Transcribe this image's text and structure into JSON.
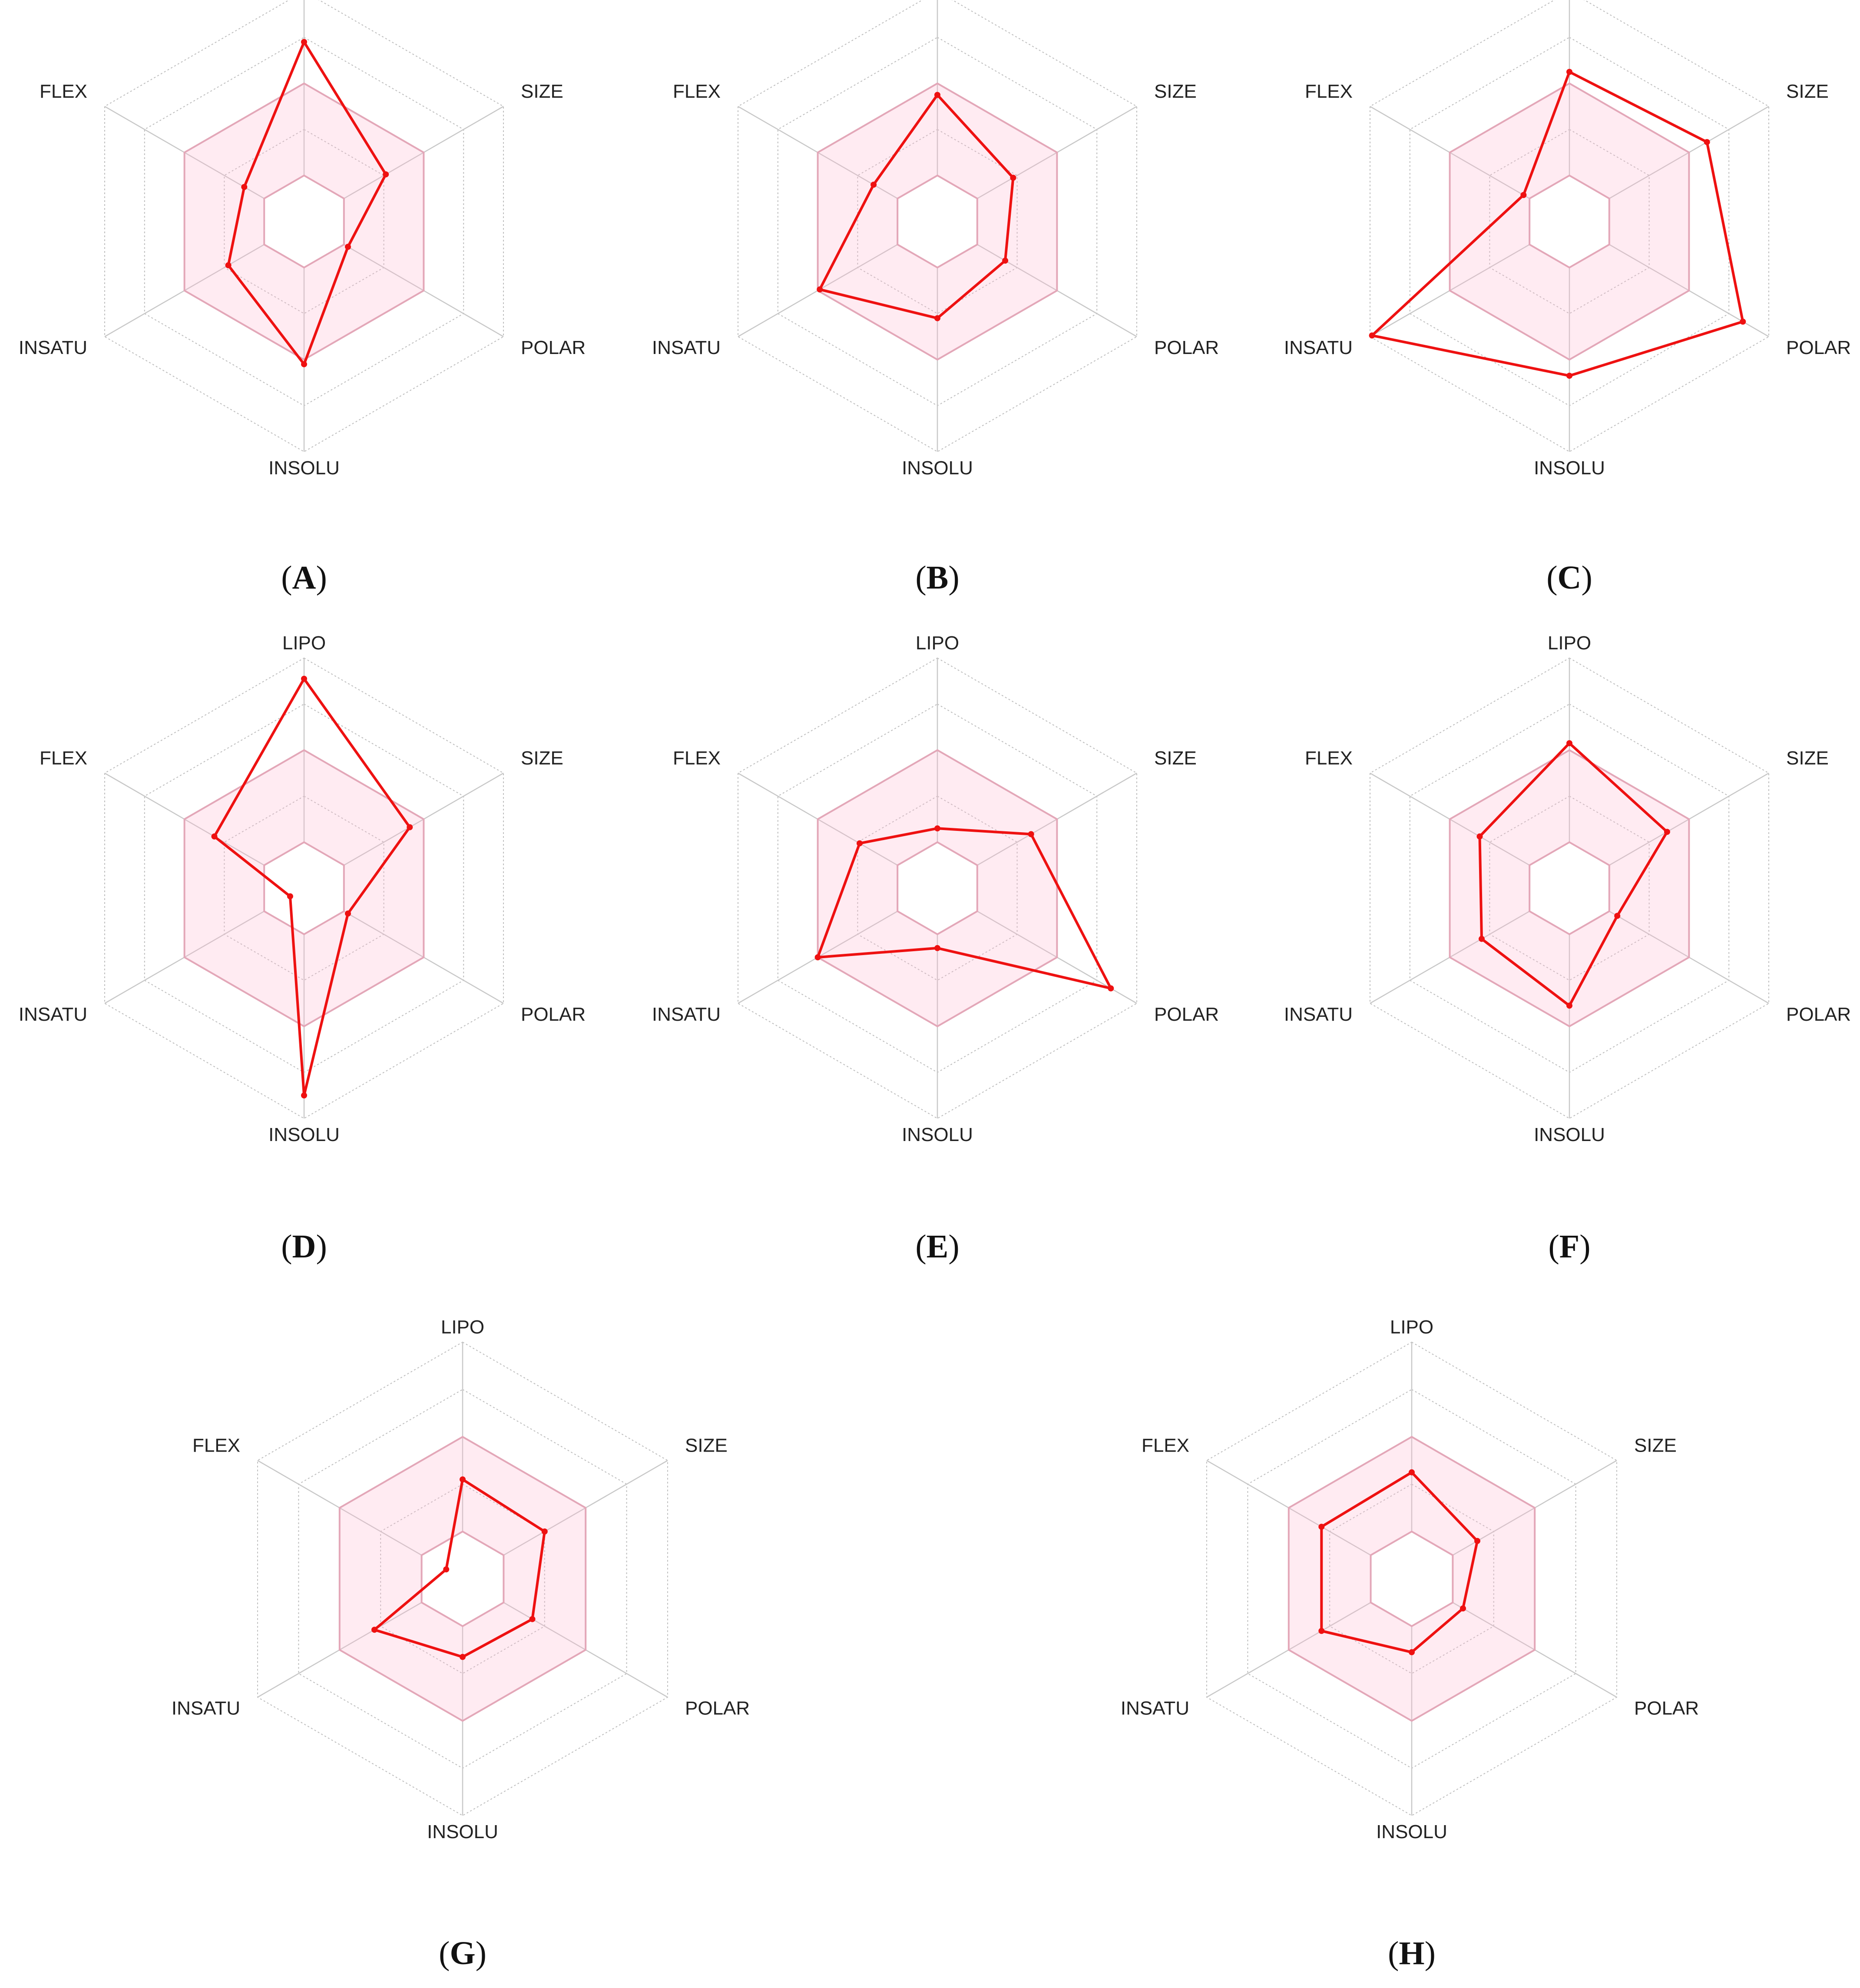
{
  "figure": {
    "axes": [
      "LIPO",
      "SIZE",
      "POLAR",
      "INSOLU",
      "INSATU",
      "FLEX"
    ],
    "ring_levels": [
      0.2,
      0.4,
      0.6,
      0.8,
      1.0
    ],
    "optimal_range": {
      "inner": 0.2,
      "outer": 0.6
    },
    "colors": {
      "line": "#ee1111",
      "zone_fill": "#ffd9e6",
      "zone_stroke": "#e3a7b8",
      "grid": "#bdbdbd"
    }
  },
  "chart_data": [
    {
      "type": "radar",
      "panel": "A",
      "axes": [
        "LIPO",
        "SIZE",
        "POLAR",
        "INSOLU",
        "INSATU",
        "FLEX"
      ],
      "values": [
        0.78,
        0.41,
        0.22,
        0.62,
        0.38,
        0.3
      ],
      "optimal_range": [
        0.2,
        0.6
      ]
    },
    {
      "type": "radar",
      "panel": "B",
      "axes": [
        "LIPO",
        "SIZE",
        "POLAR",
        "INSOLU",
        "INSATU",
        "FLEX"
      ],
      "values": [
        0.55,
        0.38,
        0.34,
        0.42,
        0.59,
        0.32
      ],
      "optimal_range": [
        0.2,
        0.6
      ]
    },
    {
      "type": "radar",
      "panel": "C",
      "axes": [
        "LIPO",
        "SIZE",
        "POLAR",
        "INSOLU",
        "INSATU",
        "FLEX"
      ],
      "values": [
        0.65,
        0.69,
        0.87,
        0.67,
        0.99,
        0.23
      ],
      "optimal_range": [
        0.2,
        0.6
      ]
    },
    {
      "type": "radar",
      "panel": "D",
      "axes": [
        "LIPO",
        "SIZE",
        "POLAR",
        "INSOLU",
        "INSATU",
        "FLEX"
      ],
      "values": [
        0.91,
        0.53,
        0.22,
        0.9,
        0.07,
        0.45
      ],
      "optimal_range": [
        0.2,
        0.6
      ]
    },
    {
      "type": "radar",
      "panel": "E",
      "axes": [
        "LIPO",
        "SIZE",
        "POLAR",
        "INSOLU",
        "INSATU",
        "FLEX"
      ],
      "values": [
        0.26,
        0.47,
        0.87,
        0.26,
        0.6,
        0.39
      ],
      "optimal_range": [
        0.2,
        0.6
      ]
    },
    {
      "type": "radar",
      "panel": "F",
      "axes": [
        "LIPO",
        "SIZE",
        "POLAR",
        "INSOLU",
        "INSATU",
        "FLEX"
      ],
      "values": [
        0.63,
        0.49,
        0.24,
        0.51,
        0.44,
        0.45
      ],
      "optimal_range": [
        0.2,
        0.6
      ]
    },
    {
      "type": "radar",
      "panel": "G",
      "axes": [
        "LIPO",
        "SIZE",
        "POLAR",
        "INSOLU",
        "INSATU",
        "FLEX"
      ],
      "values": [
        0.42,
        0.4,
        0.34,
        0.33,
        0.43,
        0.08
      ],
      "optimal_range": [
        0.2,
        0.6
      ]
    },
    {
      "type": "radar",
      "panel": "H",
      "axes": [
        "LIPO",
        "SIZE",
        "POLAR",
        "INSOLU",
        "INSATU",
        "FLEX"
      ],
      "values": [
        0.45,
        0.32,
        0.25,
        0.31,
        0.44,
        0.44
      ],
      "optimal_range": [
        0.2,
        0.6
      ]
    }
  ],
  "panels": [
    {
      "label": "A",
      "caption_open": "(",
      "caption_close": ")"
    },
    {
      "label": "B",
      "caption_open": "(",
      "caption_close": ")"
    },
    {
      "label": "C",
      "caption_open": "(",
      "caption_close": ")"
    },
    {
      "label": "D",
      "caption_open": "(",
      "caption_close": ")"
    },
    {
      "label": "E",
      "caption_open": "(",
      "caption_close": ")"
    },
    {
      "label": "F",
      "caption_open": "(",
      "caption_close": ")"
    },
    {
      "label": "G",
      "caption_open": "(",
      "caption_close": ")"
    },
    {
      "label": "H",
      "caption_open": "(",
      "caption_close": ")"
    }
  ]
}
